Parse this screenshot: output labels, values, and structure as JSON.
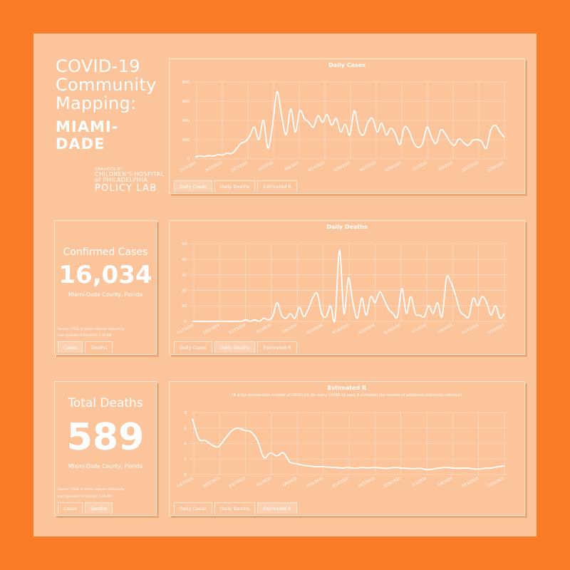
{
  "header": {
    "title_line1": "COVID-19",
    "title_line2": "Community",
    "title_line3": "Mapping:",
    "county": "MIAMI-DADE"
  },
  "logo": {
    "graphics_by": "GRAPHICS BY:",
    "line1": "CHILDREN'S HOSPITAL",
    "line2": "of PHILADELPHIA",
    "line3": "POLICY LAB"
  },
  "confirmed": {
    "label": "Confirmed Cases",
    "value": "16,034",
    "location": "Miami-Dade County, Florida",
    "source": "Source: CSSE at Johns Hopkins University",
    "updated": "Last Updated 5/20/2020, 1:29 PM",
    "tabs": [
      "Cases",
      "Deaths"
    ]
  },
  "deaths": {
    "label": "Total Deaths",
    "value": "589",
    "location": "Miami-Dade County, Florida",
    "source": "Source: CSSE at Johns Hopkins University",
    "updated": "Last Updated 5/20/2020, 1:29 PM",
    "tabs": [
      "Cases",
      "Deaths"
    ]
  },
  "chart_tabs": [
    "Daily Cases",
    "Daily Deaths",
    "Estimated R"
  ],
  "colors": {
    "outer": "#fb7a25",
    "panel": "#fbc49b",
    "line": "#ffffff",
    "border": "#fde8d6"
  },
  "chart_data": [
    {
      "type": "line",
      "title": "Daily Cases",
      "ylim": [
        0,
        800
      ],
      "yticks": [
        0,
        200,
        400,
        600,
        800
      ],
      "xticks": [
        "3/17/2020",
        "3/22/2020",
        "3/27/2020",
        "4/1/2020",
        "4/6/2020",
        "4/11/2020",
        "4/16/2020",
        "4/21/2020",
        "4/26/2020",
        "5/1/2020",
        "5/6/2020",
        "5/11/2020",
        "5/16/2020"
      ],
      "x_start": "3/17/2020",
      "values": [
        20,
        30,
        25,
        35,
        30,
        45,
        40,
        60,
        55,
        100,
        160,
        180,
        240,
        330,
        200,
        400,
        110,
        350,
        700,
        450,
        250,
        520,
        280,
        500,
        420,
        380,
        330,
        450,
        380,
        460,
        350,
        420,
        280,
        360,
        250,
        500,
        300,
        250,
        380,
        420,
        280,
        370,
        250,
        320,
        260,
        150,
        330,
        290,
        170,
        120,
        160,
        330,
        220,
        160,
        300,
        260,
        180,
        140,
        210,
        170,
        140,
        190,
        200,
        180,
        110,
        300,
        350,
        280,
        220
      ]
    },
    {
      "type": "line",
      "title": "Daily Deaths",
      "ylim": [
        0,
        50
      ],
      "yticks": [
        0,
        10,
        20,
        30,
        40,
        50
      ],
      "xticks": [
        "3/17/2020",
        "3/22/2020",
        "3/27/2020",
        "4/1/2020",
        "4/6/2020",
        "4/11/2020",
        "4/16/2020",
        "4/21/2020",
        "4/26/2020",
        "5/1/2020",
        "5/6/2020",
        "5/11/2020",
        "5/16/2020"
      ],
      "x_start": "3/17/2020",
      "values": [
        0,
        0,
        0,
        0,
        0,
        0,
        0,
        0,
        0,
        0,
        0,
        0,
        1,
        0,
        1,
        0,
        2,
        1,
        3,
        12,
        4,
        2,
        5,
        2,
        9,
        3,
        8,
        15,
        18,
        5,
        3,
        10,
        1,
        46,
        5,
        28,
        12,
        2,
        15,
        4,
        16,
        12,
        19,
        14,
        8,
        5,
        3,
        21,
        5,
        16,
        5,
        4,
        3,
        10,
        5,
        12,
        3,
        28,
        25,
        17,
        7,
        4,
        3,
        15,
        10,
        16,
        12,
        4,
        10,
        2,
        5
      ]
    },
    {
      "type": "line",
      "title": "Estimated R",
      "subtitle": "(R is the reproduction number of COVID-19; for every COVID-19 case, R estimates the number of additional individuals infected.)",
      "ylim": [
        0,
        8
      ],
      "yticks": [
        0,
        2,
        4,
        6,
        8
      ],
      "xticks": [
        "3/17/2020",
        "3/22/2020",
        "3/27/2020",
        "4/1/2020",
        "4/6/2020",
        "4/11/2020",
        "4/16/2020",
        "4/21/2020",
        "4/26/2020",
        "5/1/2020",
        "5/6/2020",
        "5/11/2020",
        "5/16/2020"
      ],
      "x_start": "3/17/2020",
      "values": [
        7.2,
        4.6,
        4.4,
        3.8,
        3.6,
        4.6,
        5.6,
        6.0,
        5.7,
        5.5,
        4.4,
        2.2,
        2.8,
        2.4,
        2.8,
        1.6,
        1.4,
        1.2,
        1.1,
        1.0,
        1.0,
        0.95,
        0.9,
        0.85,
        0.9,
        0.8,
        0.9,
        0.85,
        0.9,
        0.85,
        0.8,
        0.9,
        0.85,
        0.8,
        0.75,
        0.8,
        0.65,
        0.7,
        0.85,
        0.9,
        0.85,
        0.8,
        0.85,
        0.75,
        0.7,
        0.8,
        0.85,
        1.0,
        1.1
      ]
    }
  ]
}
